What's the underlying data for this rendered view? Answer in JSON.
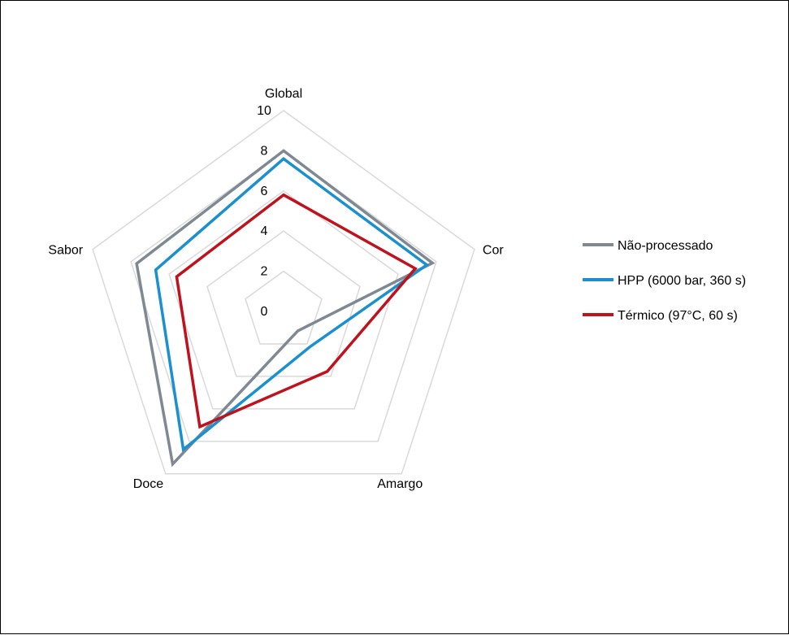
{
  "chart_data": {
    "type": "radar",
    "categories": [
      "Global",
      "Cor",
      "Amargo",
      "Doce",
      "Sabor"
    ],
    "rmin": 0,
    "rmax": 10,
    "ticks": [
      "0",
      "2",
      "4",
      "6",
      "8",
      "10"
    ],
    "grid": true,
    "legend_position": "right",
    "series": [
      {
        "name": "Não-processado",
        "values": [
          8.0,
          7.8,
          1.2,
          9.4,
          7.7
        ],
        "color": "#7f8993"
      },
      {
        "name": "HPP (6000 bar, 360 s)",
        "values": [
          7.6,
          7.5,
          2.2,
          8.5,
          6.7
        ],
        "color": "#1a90d0"
      },
      {
        "name": "Térmico (97°C, 60 s)",
        "values": [
          5.8,
          6.9,
          3.7,
          7.1,
          5.6
        ],
        "color": "#c0121c"
      }
    ]
  }
}
